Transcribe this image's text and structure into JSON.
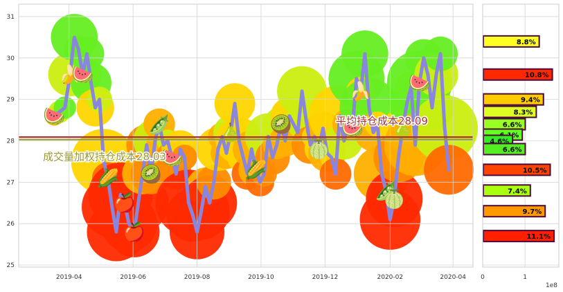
{
  "chart_data": [
    {
      "type": "line",
      "title": "",
      "xlabel": "",
      "ylabel": "",
      "x_ticks": [
        "2019-04",
        "2019-06",
        "2019-08",
        "2019-10",
        "2019-12",
        "2020-02",
        "2020-04"
      ],
      "y_ticks": [
        25,
        26,
        27,
        28,
        29,
        30,
        31
      ],
      "xlim": [
        "2019-02-12",
        "2020-04-20"
      ],
      "ylim": [
        24.95,
        31.3
      ],
      "grid": true,
      "series": [
        {
          "x": [
            "2019-03-18",
            "2019-03-23",
            "2019-03-28",
            "2019-04-02",
            "2019-04-06",
            "2019-04-10",
            "2019-04-14",
            "2019-04-18",
            "2019-04-22",
            "2019-04-26",
            "2019-04-30",
            "2019-05-04",
            "2019-05-08",
            "2019-05-12",
            "2019-05-16",
            "2019-05-20",
            "2019-05-24",
            "2019-05-28",
            "2019-06-02",
            "2019-06-06",
            "2019-06-10",
            "2019-06-14",
            "2019-06-18",
            "2019-06-22",
            "2019-06-26",
            "2019-06-30",
            "2019-07-04",
            "2019-07-08",
            "2019-07-12",
            "2019-07-16",
            "2019-07-20",
            "2019-07-24",
            "2019-07-28",
            "2019-08-01",
            "2019-08-05",
            "2019-08-09",
            "2019-08-13",
            "2019-08-17",
            "2019-08-21",
            "2019-08-25",
            "2019-08-29",
            "2019-09-02",
            "2019-09-06",
            "2019-09-10",
            "2019-09-14",
            "2019-09-18",
            "2019-09-22",
            "2019-09-26",
            "2019-09-30",
            "2019-10-04",
            "2019-10-08",
            "2019-10-12",
            "2019-10-16",
            "2019-10-20",
            "2019-10-24",
            "2019-10-28",
            "2019-11-01",
            "2019-11-05",
            "2019-11-09",
            "2019-11-13",
            "2019-11-17",
            "2019-11-21",
            "2019-11-25",
            "2019-11-29",
            "2019-12-03",
            "2019-12-07",
            "2019-12-11",
            "2019-12-15",
            "2019-12-19",
            "2019-12-23",
            "2019-12-27",
            "2019-12-31",
            "2020-01-04",
            "2020-01-08",
            "2020-01-12",
            "2020-01-16",
            "2020-01-20",
            "2020-01-24",
            "2020-01-28",
            "2020-02-01",
            "2020-02-05",
            "2020-02-09",
            "2020-02-13",
            "2020-02-17",
            "2020-02-21",
            "2020-02-25",
            "2020-02-29",
            "2020-03-04",
            "2020-03-08",
            "2020-03-12",
            "2020-03-16",
            "2020-03-20",
            "2020-03-24",
            "2020-03-28"
          ],
          "y": [
            28.6,
            28.7,
            28.8,
            29.6,
            30.5,
            30.2,
            29.6,
            30.1,
            29.4,
            28.8,
            29.0,
            27.5,
            27.1,
            26.4,
            25.8,
            26.7,
            26.5,
            26.0,
            25.8,
            26.5,
            27.2,
            27.9,
            27.2,
            28.0,
            28.4,
            27.9,
            28.0,
            27.6,
            27.2,
            27.8,
            27.6,
            26.5,
            26.2,
            25.8,
            26.3,
            26.9,
            26.5,
            27.0,
            27.8,
            28.1,
            27.7,
            28.2,
            28.9,
            28.0,
            27.6,
            27.2,
            27.8,
            27.3,
            27.0,
            27.2,
            28.1,
            27.6,
            27.9,
            28.4,
            28.0,
            28.6,
            28.4,
            28.2,
            29.2,
            28.5,
            27.9,
            28.1,
            27.8,
            28.3,
            27.7,
            27.6,
            27.2,
            28.6,
            28.0,
            28.4,
            28.3,
            29.5,
            29.2,
            30.1,
            28.8,
            28.2,
            28.4,
            27.2,
            26.8,
            26.1,
            26.6,
            27.6,
            28.3,
            28.9,
            29.3,
            27.9,
            29.4,
            30.0,
            29.6,
            28.8,
            29.6,
            30.1,
            28.3,
            27.3
          ]
        }
      ],
      "hlines": [
        {
          "value": 28.09,
          "label": "平均持仓成本28.09",
          "color": "#a83232"
        },
        {
          "value": 28.03,
          "label": "成交量加权持仓成本28.03",
          "color": "#999933"
        }
      ]
    },
    {
      "type": "bar",
      "orientation": "horizontal",
      "xlabel": "",
      "x_ticks": [
        "0",
        "1"
      ],
      "xlim": [
        0,
        1.8
      ],
      "x_offset_label": "1e8",
      "y_range": [
        24.95,
        31.3
      ],
      "bars": [
        {
          "y": 30.4,
          "value": 1.32,
          "label": "8.8%",
          "color": "#ffff22"
        },
        {
          "y": 29.6,
          "value": 1.63,
          "label": "10.8%",
          "color": "#ff2800"
        },
        {
          "y": 29.0,
          "value": 1.42,
          "label": "9.4%",
          "color": "#ffcc00"
        },
        {
          "y": 28.7,
          "value": 1.25,
          "label": "8.3%",
          "color": "#ddff22"
        },
        {
          "y": 28.4,
          "value": 0.99,
          "label": "6.6%",
          "color": "#99ff22"
        },
        {
          "y": 28.15,
          "value": 0.92,
          "label": "6.1%",
          "color": "#66ff22"
        },
        {
          "y": 28.0,
          "value": 0.69,
          "label": "4.6%",
          "color": "#33ee22"
        },
        {
          "y": 27.8,
          "value": 0.99,
          "label": "6.6%",
          "color": "#55ee22"
        },
        {
          "y": 27.3,
          "value": 1.58,
          "label": "10.5%",
          "color": "#ff4400"
        },
        {
          "y": 26.8,
          "value": 1.11,
          "label": "7.4%",
          "color": "#aaff11"
        },
        {
          "y": 26.3,
          "value": 1.46,
          "label": "9.7%",
          "color": "#ff9900"
        },
        {
          "y": 25.7,
          "value": 1.67,
          "label": "11.1%",
          "color": "#ff2000"
        }
      ]
    }
  ]
}
